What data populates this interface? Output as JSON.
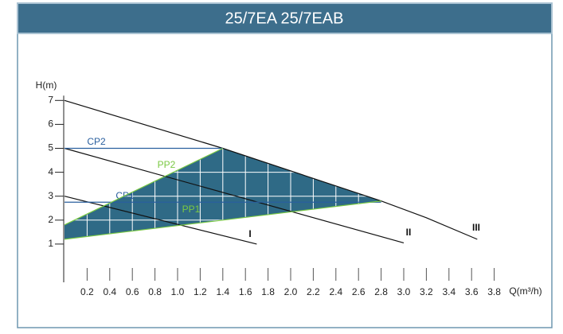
{
  "chart_data": {
    "type": "line",
    "title": "25/7EA  25/7EAB",
    "y_label": "H(m)",
    "x_label": "Q(m³/h)",
    "xlim": [
      0,
      3.8
    ],
    "ylim": [
      0,
      7
    ],
    "xticks": [
      0.2,
      0.4,
      0.6,
      0.8,
      {
        "value": 1,
        "label": "1.0"
      },
      1.2,
      1.4,
      1.6,
      1.8,
      {
        "value": 2,
        "label": "2.0"
      },
      2.2,
      2.4,
      2.6,
      2.8,
      {
        "value": 3,
        "label": "3.0"
      },
      3.2,
      3.4,
      3.6,
      3.8
    ],
    "yticks": [
      1,
      2,
      3,
      4,
      5,
      6,
      7
    ],
    "grid": true,
    "operating_area": {
      "color": "#2f6a86",
      "x": [
        0,
        0,
        1.4,
        2.8
      ],
      "values": [
        1.2,
        1.8,
        5,
        2.8
      ]
    },
    "series": [
      {
        "name": "I",
        "color": "#111111",
        "x": [
          0,
          1.7
        ],
        "values": [
          3,
          1
        ]
      },
      {
        "name": "II",
        "color": "#111111",
        "x": [
          0,
          3.0
        ],
        "values": [
          5,
          1.05
        ]
      },
      {
        "name": "III",
        "color": "#111111",
        "x": [
          0,
          1.4,
          2.8,
          3.2,
          3.65
        ],
        "values": [
          7,
          5,
          2.8,
          2.1,
          1.2
        ]
      },
      {
        "name": "CP2",
        "color": "#2a5f9e",
        "x": [
          0,
          1.4
        ],
        "values": [
          5,
          5
        ]
      },
      {
        "name": "CP1",
        "color": "#2a5f9e",
        "x": [
          0,
          2.8
        ],
        "values": [
          2.75,
          2.75
        ]
      },
      {
        "name": "PP2",
        "color": "#7ac943",
        "x": [
          0,
          1.4
        ],
        "values": [
          1.8,
          5
        ]
      },
      {
        "name": "PP1",
        "color": "#7ac943",
        "x": [
          0,
          2.8
        ],
        "values": [
          1.2,
          2.8
        ]
      }
    ]
  }
}
